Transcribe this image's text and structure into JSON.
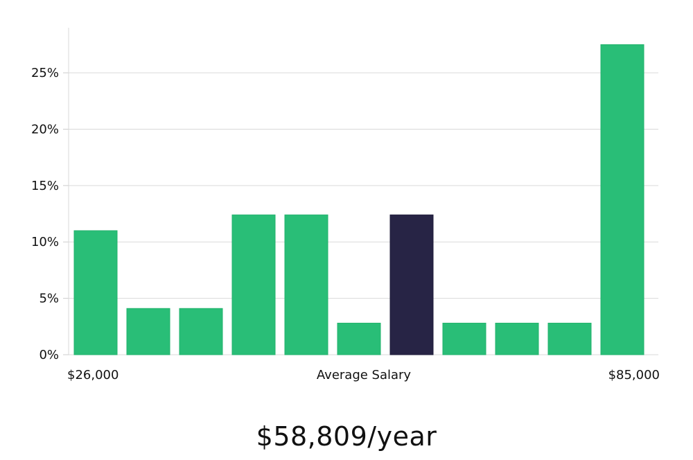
{
  "chart_data": {
    "type": "bar",
    "title": "",
    "xlabel": "Average Salary",
    "ylabel": "",
    "x_range_labels": {
      "min": "$26,000",
      "max": "$85,000"
    },
    "ylim": [
      0,
      29
    ],
    "yticks": [
      0,
      5,
      10,
      15,
      20,
      25
    ],
    "ytick_suffix": "%",
    "grid": true,
    "values": [
      11,
      4.1,
      4.1,
      12.4,
      12.4,
      2.8,
      12.4,
      2.8,
      2.8,
      2.8,
      27.5
    ],
    "highlight_index": 6,
    "colors": {
      "bar": "#29be77",
      "highlight": "#272445",
      "grid": "#d9d9d9",
      "axis": "#cccccc"
    }
  },
  "summary": {
    "salary": "$58,809/year"
  }
}
